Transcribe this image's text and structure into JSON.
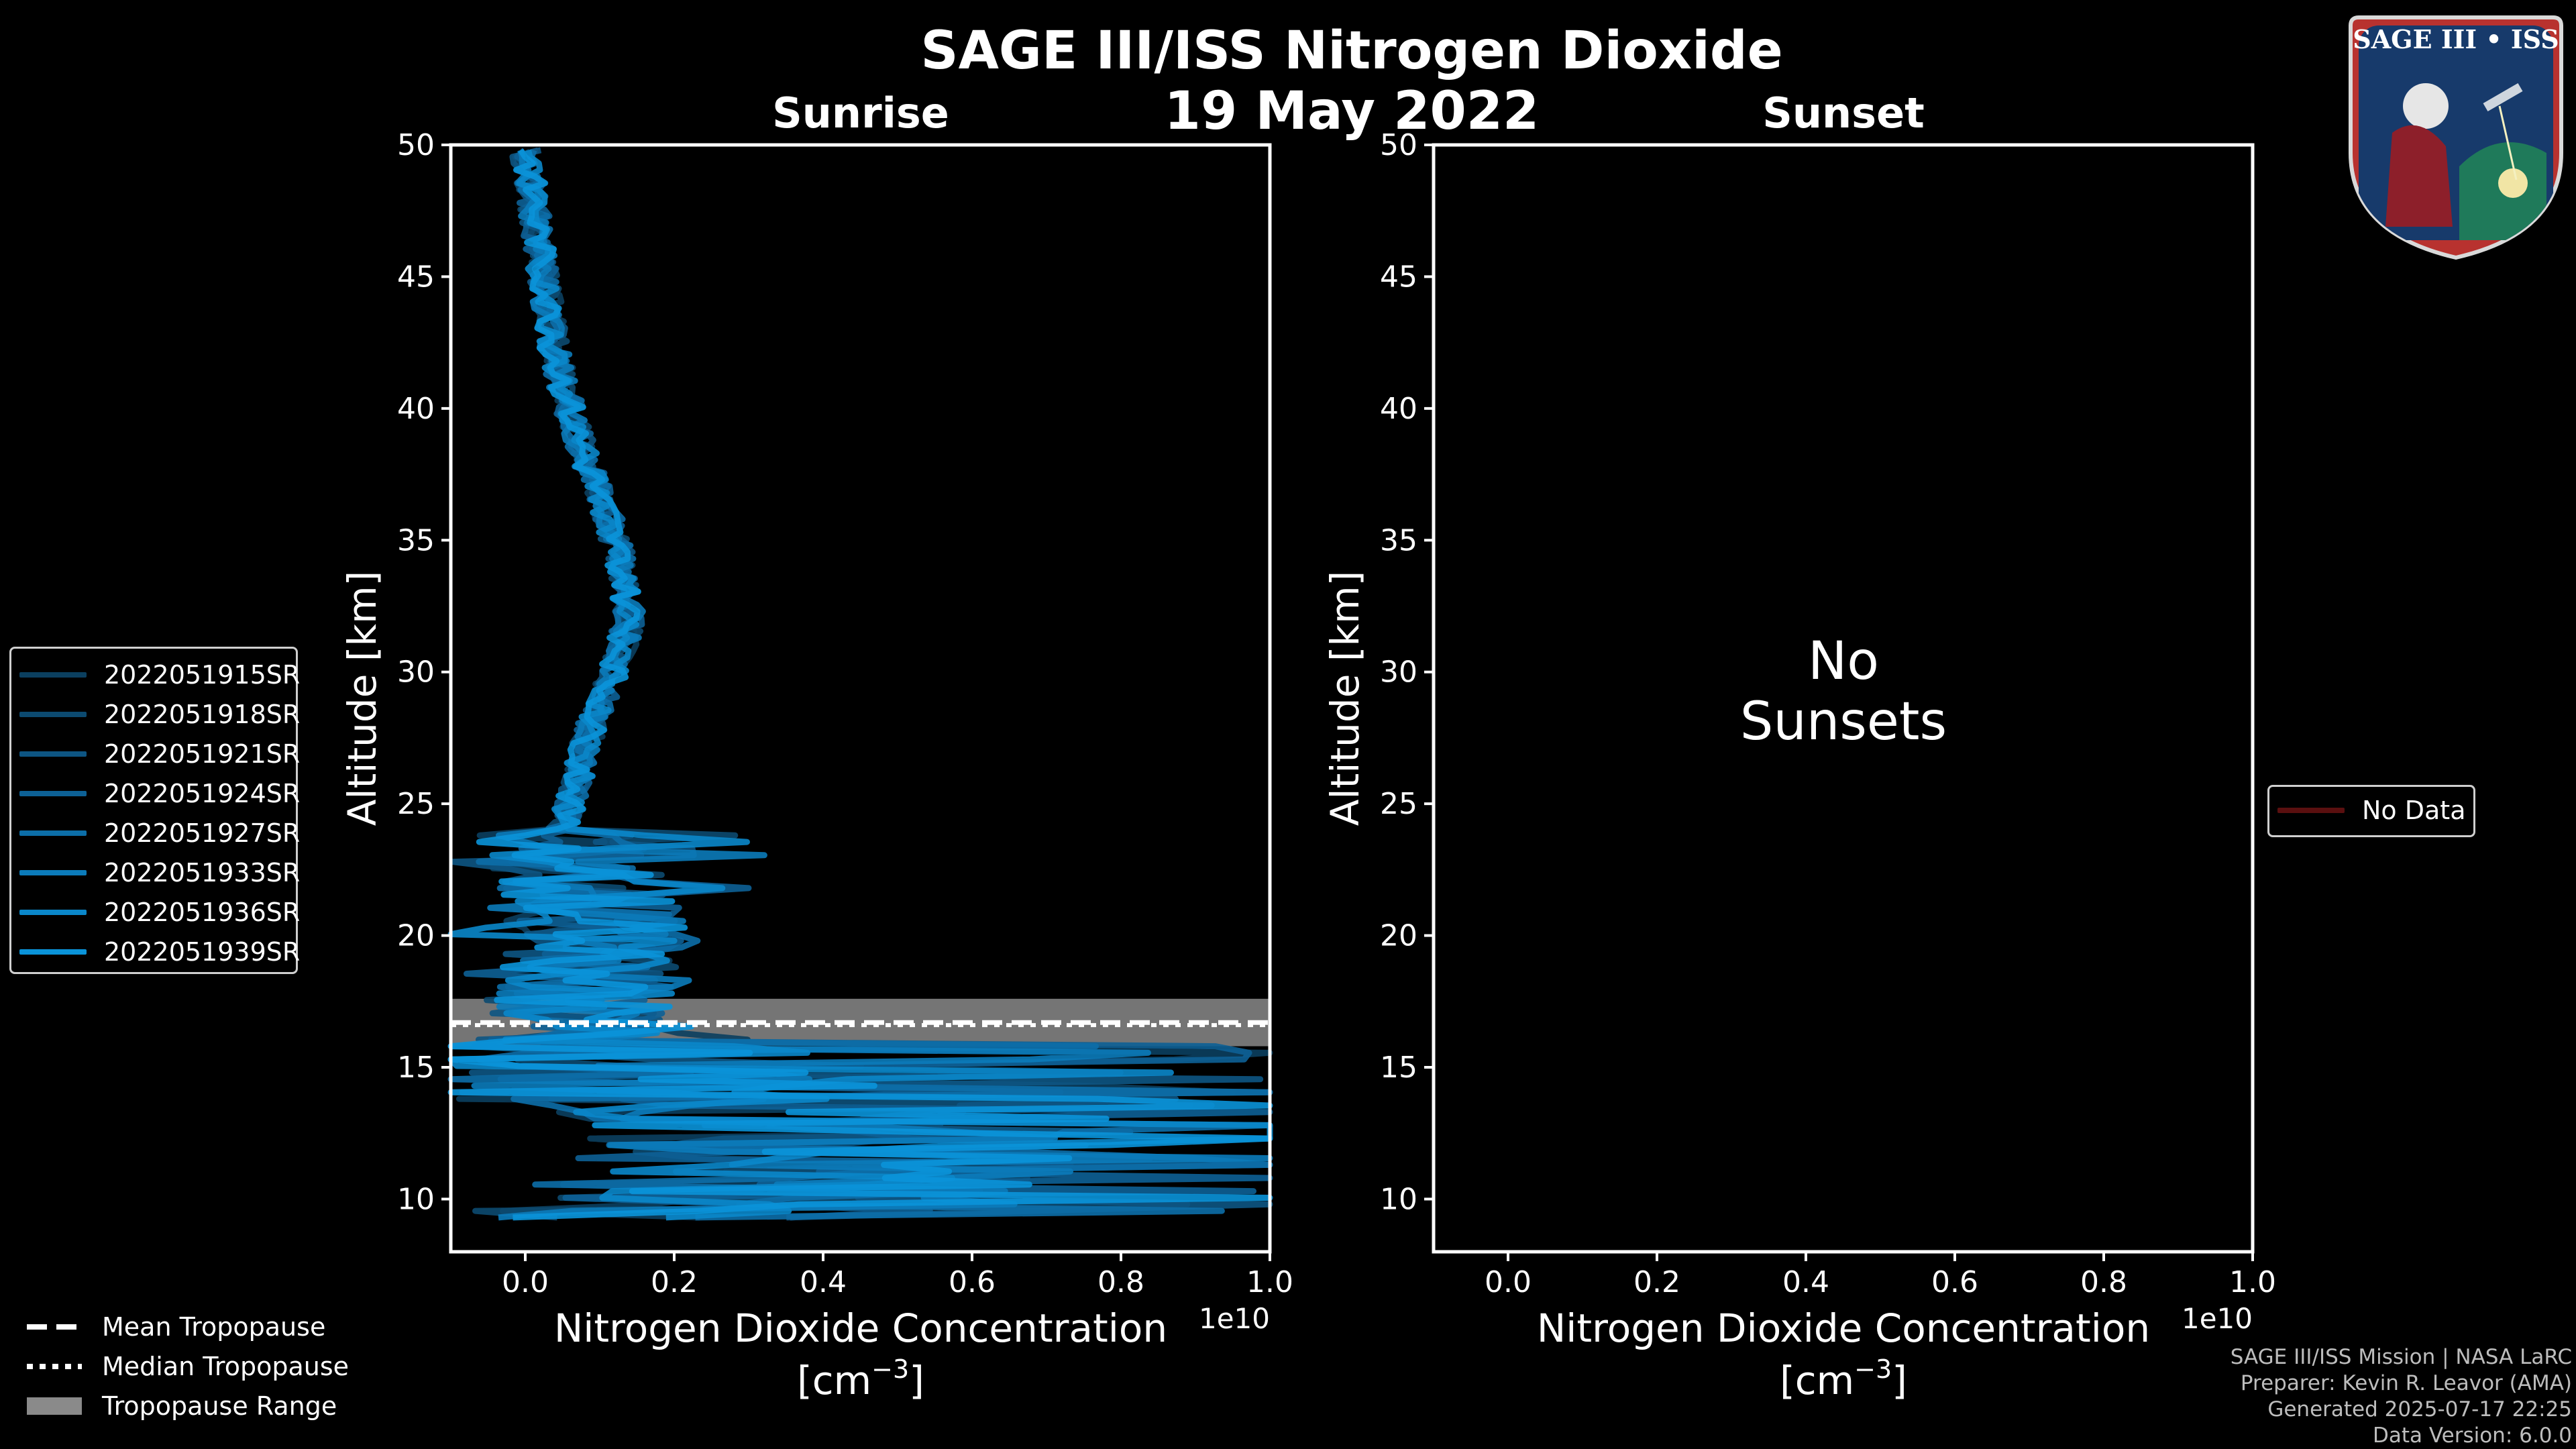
{
  "title": "SAGE III/ISS Nitrogen Dioxide",
  "date": "19 May 2022",
  "colors": {
    "background": "#000000",
    "sunrise_series": "#0a8fd6",
    "tropopause_band": "#8a8a8a",
    "no_data": "#5a0f0f"
  },
  "chart_data": [
    {
      "type": "line",
      "panel": "Sunrise",
      "xlabel": "Nitrogen Dioxide Concentration",
      "xlabel_units": "[cm",
      "xlabel_exp": "−3",
      "xlabel_close": "]",
      "x_offset_text": "1e10",
      "ylabel": "Altitude [km]",
      "xlim": [
        -0.1,
        1.0
      ],
      "ylim": [
        8,
        50
      ],
      "xticks": [
        0.0,
        0.2,
        0.4,
        0.6,
        0.8,
        1.0
      ],
      "xtick_labels": [
        "0.0",
        "0.2",
        "0.4",
        "0.6",
        "0.8",
        "1.0"
      ],
      "yticks": [
        10,
        15,
        20,
        25,
        30,
        35,
        40,
        45,
        50
      ],
      "ytick_labels": [
        "10",
        "15",
        "20",
        "25",
        "30",
        "35",
        "40",
        "45",
        "50"
      ],
      "tropopause": {
        "mean": 16.7,
        "median": 16.6,
        "range": [
          15.8,
          17.6
        ]
      },
      "series_profile": {
        "altitude": [
          50,
          48,
          46,
          44,
          42,
          40,
          38,
          36,
          34,
          32,
          30,
          28,
          26,
          24,
          22,
          20,
          18,
          16,
          14,
          12,
          10,
          9
        ],
        "no2": [
          0.0,
          0.01,
          0.02,
          0.03,
          0.04,
          0.06,
          0.08,
          0.11,
          0.13,
          0.14,
          0.12,
          0.09,
          0.07,
          0.05,
          0.08,
          0.1,
          0.08,
          0.07,
          0.2,
          0.45,
          0.3,
          0.25
        ]
      },
      "series": [
        {
          "name": "2022051915SR",
          "color": "#0b3f5f"
        },
        {
          "name": "2022051918SR",
          "color": "#0c4a70"
        },
        {
          "name": "2022051921SR",
          "color": "#0d5583"
        },
        {
          "name": "2022051924SR",
          "color": "#0d6196"
        },
        {
          "name": "2022051927SR",
          "color": "#0c6ea8"
        },
        {
          "name": "2022051933SR",
          "color": "#0b7bba"
        },
        {
          "name": "2022051936SR",
          "color": "#0a87ca"
        },
        {
          "name": "2022051939SR",
          "color": "#0a93d9"
        }
      ]
    },
    {
      "type": "line",
      "panel": "Sunset",
      "xlabel": "Nitrogen Dioxide Concentration",
      "xlabel_units": "[cm",
      "xlabel_exp": "−3",
      "xlabel_close": "]",
      "x_offset_text": "1e10",
      "ylabel": "Altitude [km]",
      "xlim": [
        -0.1,
        1.0
      ],
      "ylim": [
        8,
        50
      ],
      "xticks": [
        0.0,
        0.2,
        0.4,
        0.6,
        0.8,
        1.0
      ],
      "xtick_labels": [
        "0.0",
        "0.2",
        "0.4",
        "0.6",
        "0.8",
        "1.0"
      ],
      "yticks": [
        10,
        15,
        20,
        25,
        30,
        35,
        40,
        45,
        50
      ],
      "ytick_labels": [
        "10",
        "15",
        "20",
        "25",
        "30",
        "35",
        "40",
        "45",
        "50"
      ],
      "message_line1": "No",
      "message_line2": "Sunsets",
      "legend": [
        {
          "name": "No Data",
          "color": "#5a0f0f"
        }
      ]
    }
  ],
  "bottom_legend": {
    "mean": "Mean Tropopause",
    "median": "Median Tropopause",
    "range": "Tropopause Range"
  },
  "logo": {
    "title": "SAGE III • ISS"
  },
  "credits": {
    "line1": "SAGE III/ISS Mission | NASA LaRC",
    "line2": "Preparer: Kevin R. Leavor (AMA)",
    "line3": "Generated 2025-07-17 22:25",
    "line4": "Data Version: 6.0.0"
  }
}
